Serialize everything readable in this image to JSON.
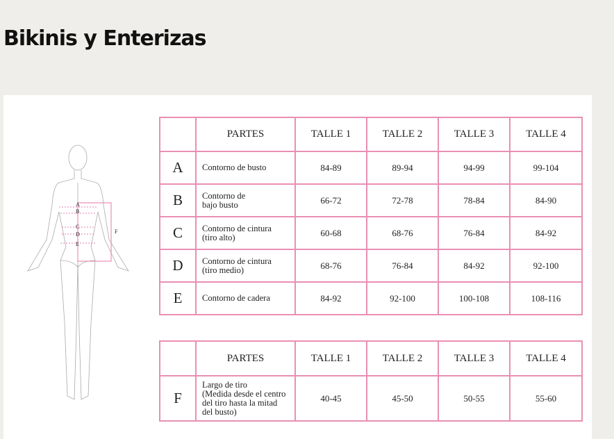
{
  "title": "Bikinis y Enterizas",
  "figure": {
    "labels": [
      "A",
      "B",
      "C",
      "D",
      "E",
      "F"
    ]
  },
  "table1": {
    "headers": [
      "",
      "PARTES",
      "TALLE 1",
      "TALLE 2",
      "TALLE 3",
      "TALLE 4"
    ],
    "rows": [
      {
        "letter": "A",
        "part": [
          "Contorno de busto"
        ],
        "values": [
          "84-89",
          "89-94",
          "94-99",
          "99-104"
        ]
      },
      {
        "letter": "B",
        "part": [
          "Contorno de",
          "bajo busto"
        ],
        "values": [
          "66-72",
          "72-78",
          "78-84",
          "84-90"
        ]
      },
      {
        "letter": "C",
        "part": [
          "Contorno de cintura",
          "(tiro alto)"
        ],
        "values": [
          "60-68",
          "68-76",
          "76-84",
          "84-92"
        ]
      },
      {
        "letter": "D",
        "part": [
          "Contorno de cintura",
          "(tiro medio)"
        ],
        "values": [
          "68-76",
          "76-84",
          "84-92",
          "92-100"
        ]
      },
      {
        "letter": "E",
        "part": [
          "Contorno de cadera"
        ],
        "values": [
          "84-92",
          "92-100",
          "100-108",
          "108-116"
        ]
      }
    ]
  },
  "table2": {
    "headers": [
      "",
      "PARTES",
      "TALLE 1",
      "TALLE 2",
      "TALLE 3",
      "TALLE 4"
    ],
    "rows": [
      {
        "letter": "F",
        "part": [
          "Largo de tiro",
          "(Medida desde el centro",
          "del tiro hasta la mitad",
          "del busto)"
        ],
        "values": [
          "40-45",
          "45-50",
          "50-55",
          "55-60"
        ]
      }
    ]
  },
  "colors": {
    "border": "#e98fb3",
    "background": "#efeeea"
  }
}
